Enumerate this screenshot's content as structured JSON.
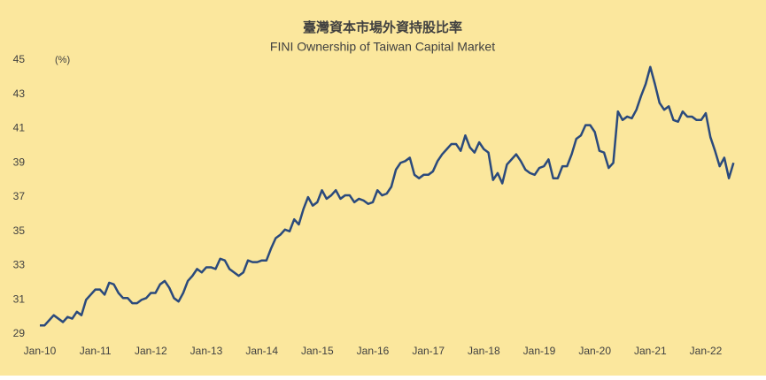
{
  "chart_data": {
    "type": "line",
    "title": "臺灣資本市場外資持股比率",
    "subtitle": "FINI Ownership of Taiwan Capital Market",
    "y_unit": "(%)",
    "categories": [
      "Jan-10",
      null,
      null,
      null,
      null,
      null,
      null,
      null,
      null,
      null,
      null,
      null,
      "Jan-11",
      null,
      null,
      null,
      null,
      null,
      null,
      null,
      null,
      null,
      null,
      null,
      "Jan-12",
      null,
      null,
      null,
      null,
      null,
      null,
      null,
      null,
      null,
      null,
      null,
      "Jan-13",
      null,
      null,
      null,
      null,
      null,
      null,
      null,
      null,
      null,
      null,
      null,
      "Jan-14",
      null,
      null,
      null,
      null,
      null,
      null,
      null,
      null,
      null,
      null,
      null,
      "Jan-15",
      null,
      null,
      null,
      null,
      null,
      null,
      null,
      null,
      null,
      null,
      null,
      "Jan-16",
      null,
      null,
      null,
      null,
      null,
      null,
      null,
      null,
      null,
      null,
      null,
      "Jan-17",
      null,
      null,
      null,
      null,
      null,
      null,
      null,
      null,
      null,
      null,
      null,
      "Jan-18",
      null,
      null,
      null,
      null,
      null,
      null,
      null,
      null,
      null,
      null,
      null,
      "Jan-19",
      null,
      null,
      null,
      null,
      null,
      null,
      null,
      null,
      null,
      null,
      null,
      "Jan-20",
      null,
      null,
      null,
      null,
      null,
      null,
      null,
      null,
      null,
      null,
      null,
      "Jan-21",
      null,
      null,
      null,
      null,
      null,
      null,
      null,
      null,
      null,
      null,
      null,
      "Jan-22",
      null,
      null,
      null,
      null,
      null,
      null
    ],
    "series": [
      {
        "color": "#2b4a7c",
        "values": [
          29.5,
          29.5,
          29.8,
          30.1,
          29.9,
          29.7,
          30.0,
          29.9,
          30.3,
          30.1,
          31.0,
          31.3,
          31.6,
          31.6,
          31.3,
          32.0,
          31.9,
          31.4,
          31.1,
          31.1,
          30.8,
          30.8,
          31.0,
          31.1,
          31.4,
          31.4,
          31.9,
          32.1,
          31.7,
          31.1,
          30.9,
          31.4,
          32.1,
          32.4,
          32.8,
          32.6,
          32.9,
          32.9,
          32.8,
          33.4,
          33.3,
          32.8,
          32.6,
          32.4,
          32.6,
          33.3,
          33.2,
          33.2,
          33.3,
          33.3,
          34.0,
          34.6,
          34.8,
          35.1,
          35.0,
          35.7,
          35.4,
          36.3,
          37.0,
          36.5,
          36.7,
          37.4,
          36.9,
          37.1,
          37.4,
          36.9,
          37.1,
          37.1,
          36.7,
          36.9,
          36.8,
          36.6,
          36.7,
          37.4,
          37.1,
          37.2,
          37.6,
          38.6,
          39.0,
          39.1,
          39.3,
          38.3,
          38.1,
          38.3,
          38.3,
          38.5,
          39.1,
          39.5,
          39.8,
          40.1,
          40.1,
          39.7,
          40.6,
          39.9,
          39.6,
          40.2,
          39.8,
          39.6,
          38.0,
          38.4,
          37.8,
          38.9,
          39.2,
          39.5,
          39.1,
          38.6,
          38.4,
          38.3,
          38.7,
          38.8,
          39.2,
          38.1,
          38.1,
          38.8,
          38.8,
          39.5,
          40.4,
          40.6,
          41.2,
          41.2,
          40.8,
          39.7,
          39.6,
          38.7,
          39.0,
          42.0,
          41.5,
          41.7,
          41.6,
          42.1,
          42.9,
          43.6,
          44.6,
          43.6,
          42.5,
          42.1,
          42.3,
          41.5,
          41.4,
          42.0,
          41.7,
          41.7,
          41.5,
          41.5,
          41.9,
          40.5,
          39.7,
          38.8,
          39.3,
          38.1,
          39.0
        ]
      }
    ],
    "ylim": [
      29,
      45
    ],
    "yticks": [
      29,
      31,
      33,
      35,
      37,
      39,
      41,
      43,
      45
    ],
    "background": "#fbe79d"
  }
}
